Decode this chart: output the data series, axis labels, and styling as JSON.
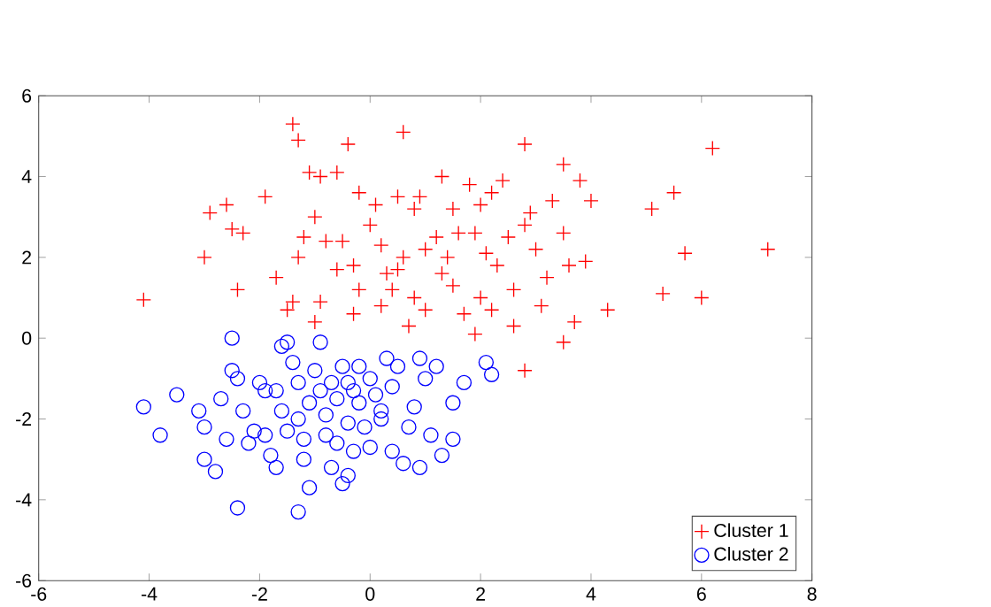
{
  "chart_data": {
    "type": "scatter",
    "xlim": [
      -6,
      8
    ],
    "ylim": [
      -6,
      6
    ],
    "xticks": [
      -6,
      -4,
      -2,
      0,
      2,
      4,
      6,
      8
    ],
    "yticks": [
      -6,
      -4,
      -2,
      0,
      2,
      4,
      6
    ],
    "legend": "bottom right",
    "grid": false,
    "series": [
      {
        "name": "Cluster 1",
        "color": "#ff0000",
        "marker": "cross",
        "x": [
          -4.1,
          -3,
          -2.9,
          -2.6,
          -2.5,
          -2.3,
          -2.4,
          -1.9,
          -1.7,
          -1.4,
          -1.3,
          -1.1,
          -0.9,
          -1.0,
          -1.2,
          -1.3,
          -1.5,
          -1.4,
          -0.6,
          -0.4,
          -0.5,
          -0.6,
          -0.8,
          -0.9,
          -1.0,
          -0.3,
          -0.2,
          -0.3,
          0,
          0.2,
          0.1,
          0.5,
          0.6,
          0.4,
          0.5,
          0.6,
          0.8,
          0.7,
          1.0,
          0.9,
          1.2,
          1.3,
          1.5,
          1.4,
          1.5,
          1.7,
          1.8,
          1.9,
          2.0,
          2.1,
          2.0,
          2.2,
          2.3,
          2.4,
          2.5,
          2.6,
          2.8,
          2.9,
          3.0,
          3.1,
          3.2,
          3.3,
          3.5,
          3.5,
          3.6,
          3.7,
          3.8,
          3.9,
          4.0,
          4.3,
          5.1,
          5.5,
          5.3,
          5.7,
          6.2,
          6.0,
          7.2,
          2.8,
          3.5,
          1.9,
          2.6,
          0.2,
          1.0,
          1.3,
          2.2,
          -0.2,
          0.8,
          1.6,
          2.8,
          0.3
        ],
        "values": [
          0.95,
          2.0,
          3.1,
          3.3,
          2.7,
          2.6,
          1.2,
          3.5,
          1.5,
          5.3,
          4.9,
          4.1,
          4.0,
          3.0,
          2.5,
          2.0,
          0.7,
          0.9,
          4.1,
          4.8,
          2.4,
          1.7,
          2.4,
          0.9,
          0.4,
          0.6,
          1.2,
          1.8,
          2.8,
          2.3,
          3.3,
          3.5,
          5.1,
          1.2,
          1.7,
          2.0,
          1.0,
          0.3,
          0.7,
          3.5,
          2.5,
          4.0,
          3.2,
          2.0,
          1.3,
          0.6,
          3.8,
          2.6,
          3.3,
          2.1,
          1.0,
          0.7,
          1.8,
          3.9,
          2.5,
          1.2,
          4.8,
          3.1,
          2.2,
          0.8,
          1.5,
          3.4,
          4.3,
          2.6,
          1.8,
          0.4,
          3.9,
          1.9,
          3.4,
          0.7,
          3.2,
          3.6,
          1.1,
          2.1,
          4.7,
          1.0,
          2.2,
          -0.8,
          -0.1,
          0.1,
          0.3,
          0.8,
          2.2,
          1.6,
          3.6,
          3.6,
          3.2,
          2.6,
          2.8,
          1.6
        ]
      },
      {
        "name": "Cluster 2",
        "color": "#0000ff",
        "marker": "circle",
        "x": [
          -4.1,
          -3.8,
          -3.5,
          -3.1,
          -3.0,
          -3.0,
          -2.8,
          -2.6,
          -2.5,
          -2.5,
          -2.4,
          -2.3,
          -2.2,
          -2.4,
          -2.0,
          -1.9,
          -1.9,
          -1.8,
          -1.7,
          -1.6,
          -1.5,
          -1.4,
          -1.3,
          -1.3,
          -1.2,
          -1.2,
          -1.1,
          -1.3,
          -1.0,
          -0.9,
          -0.8,
          -0.8,
          -0.7,
          -0.6,
          -0.5,
          -0.4,
          -0.4,
          -0.3,
          -0.5,
          -0.2,
          -0.1,
          0,
          0.1,
          0.2,
          0.3,
          0.4,
          0.4,
          0.6,
          0.7,
          0.8,
          1.0,
          1.1,
          1.2,
          1.3,
          1.5,
          1.5,
          1.7,
          2.1,
          2.2,
          -1.6,
          -1.1,
          -0.6,
          -0.2,
          0.0,
          -2.1,
          -1.7,
          -0.9,
          -0.3,
          0.5,
          -1.5,
          -0.7,
          0.2,
          -2.7,
          0.9,
          -0.4,
          0.9
        ],
        "values": [
          -1.7,
          -2.4,
          -1.4,
          -1.8,
          -2.2,
          -3.0,
          -3.3,
          -2.5,
          -0.8,
          0.0,
          -1.0,
          -1.8,
          -2.6,
          -4.2,
          -1.1,
          -1.3,
          -2.4,
          -2.9,
          -3.2,
          -1.8,
          -0.1,
          -0.6,
          -1.1,
          -2.0,
          -2.5,
          -3.0,
          -3.7,
          -4.3,
          -0.8,
          -1.3,
          -1.9,
          -2.4,
          -3.2,
          -1.5,
          -0.7,
          -1.1,
          -2.1,
          -2.8,
          -3.6,
          -1.6,
          -2.2,
          -1.0,
          -1.4,
          -2.0,
          -0.5,
          -1.2,
          -2.8,
          -3.1,
          -2.2,
          -1.7,
          -1.0,
          -2.4,
          -0.7,
          -2.9,
          -1.6,
          -2.5,
          -1.1,
          -0.6,
          -0.9,
          -0.2,
          -1.6,
          -2.6,
          -0.7,
          -2.7,
          -2.3,
          -1.3,
          -0.1,
          -1.3,
          -0.7,
          -2.3,
          -1.1,
          -1.8,
          -1.5,
          -3.2,
          -3.4,
          -0.5
        ]
      }
    ]
  }
}
